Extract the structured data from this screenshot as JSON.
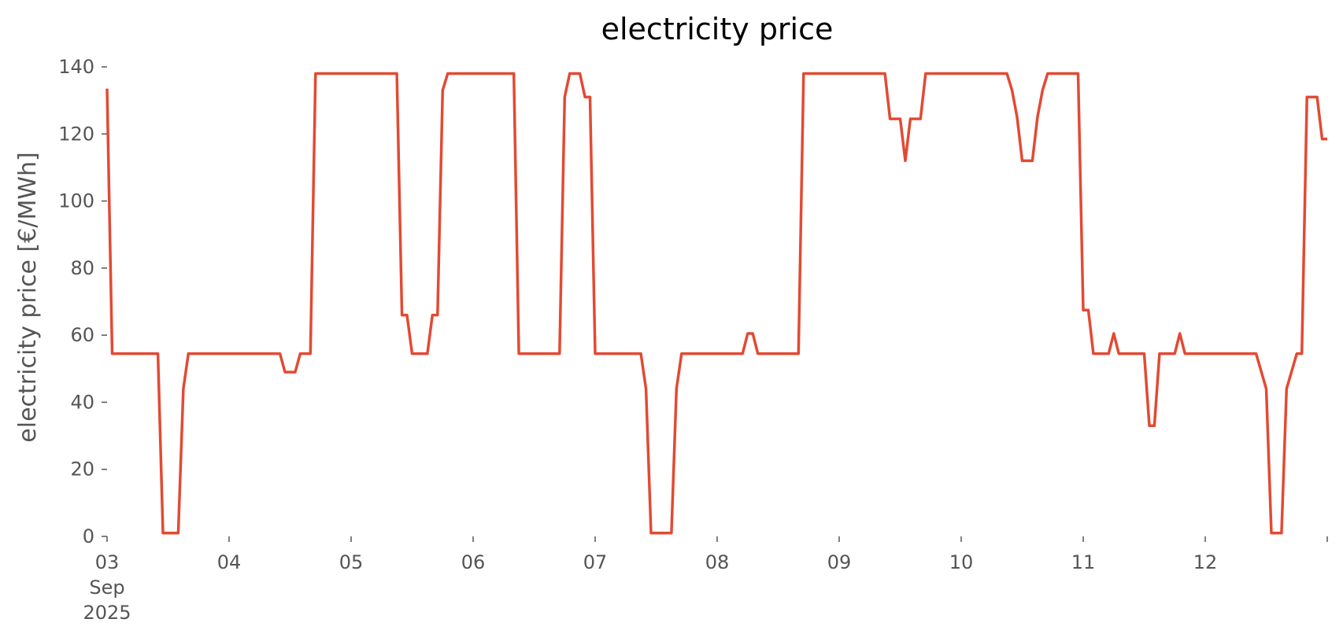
{
  "chart_data": {
    "type": "line",
    "title": "electricity price",
    "xlabel": "",
    "ylabel": "electricity price [€/MWh]",
    "grid": false,
    "legend": "none",
    "color": "#E24A33",
    "ylim": [
      0,
      140
    ],
    "xlim": [
      "2025-09-03 00:00",
      "2025-09-12 23:00"
    ],
    "yticks": [
      0,
      20,
      40,
      60,
      80,
      100,
      120,
      140
    ],
    "xticks": [
      {
        "date": "2025-09-03",
        "lines": [
          "03",
          "Sep",
          "2025"
        ]
      },
      {
        "date": "2025-09-04",
        "lines": [
          "04"
        ]
      },
      {
        "date": "2025-09-05",
        "lines": [
          "05"
        ]
      },
      {
        "date": "2025-09-06",
        "lines": [
          "06"
        ]
      },
      {
        "date": "2025-09-07",
        "lines": [
          "07"
        ]
      },
      {
        "date": "2025-09-08",
        "lines": [
          "08"
        ]
      },
      {
        "date": "2025-09-09",
        "lines": [
          "09"
        ]
      },
      {
        "date": "2025-09-10",
        "lines": [
          "10"
        ]
      },
      {
        "date": "2025-09-11",
        "lines": [
          "11"
        ]
      },
      {
        "date": "2025-09-12",
        "lines": [
          "12"
        ]
      },
      {
        "date": "2025-09-13",
        "lines": [
          ""
        ]
      }
    ],
    "series": [
      {
        "points": [
          [
            "2025-09-03 00:00",
            133.5
          ],
          [
            "2025-09-03 01:00",
            54.5
          ],
          [
            "2025-09-03 10:00",
            54.5
          ],
          [
            "2025-09-03 11:00",
            1
          ],
          [
            "2025-09-03 14:00",
            1
          ],
          [
            "2025-09-03 15:00",
            44
          ],
          [
            "2025-09-03 16:00",
            54.5
          ],
          [
            "2025-09-04 10:00",
            54.5
          ],
          [
            "2025-09-04 11:00",
            49
          ],
          [
            "2025-09-04 13:00",
            49
          ],
          [
            "2025-09-04 14:00",
            54.5
          ],
          [
            "2025-09-04 16:00",
            54.5
          ],
          [
            "2025-09-04 17:00",
            138
          ],
          [
            "2025-09-05 09:00",
            138
          ],
          [
            "2025-09-05 10:00",
            66
          ],
          [
            "2025-09-05 11:00",
            66
          ],
          [
            "2025-09-05 12:00",
            54.5
          ],
          [
            "2025-09-05 15:00",
            54.5
          ],
          [
            "2025-09-05 16:00",
            66
          ],
          [
            "2025-09-05 17:00",
            66
          ],
          [
            "2025-09-05 18:00",
            133
          ],
          [
            "2025-09-05 19:00",
            138
          ],
          [
            "2025-09-06 08:00",
            138
          ],
          [
            "2025-09-06 09:00",
            54.5
          ],
          [
            "2025-09-06 17:00",
            54.5
          ],
          [
            "2025-09-06 18:00",
            131
          ],
          [
            "2025-09-06 19:00",
            138
          ],
          [
            "2025-09-06 21:00",
            138
          ],
          [
            "2025-09-06 22:00",
            131
          ],
          [
            "2025-09-06 23:00",
            131
          ],
          [
            "2025-09-07 00:00",
            54.5
          ],
          [
            "2025-09-07 09:00",
            54.5
          ],
          [
            "2025-09-07 10:00",
            44
          ],
          [
            "2025-09-07 11:00",
            1
          ],
          [
            "2025-09-07 15:00",
            1
          ],
          [
            "2025-09-07 16:00",
            44
          ],
          [
            "2025-09-07 17:00",
            54.5
          ],
          [
            "2025-09-08 05:00",
            54.5
          ],
          [
            "2025-09-08 06:00",
            60.5
          ],
          [
            "2025-09-08 07:00",
            60.5
          ],
          [
            "2025-09-08 08:00",
            54.5
          ],
          [
            "2025-09-08 16:00",
            54.5
          ],
          [
            "2025-09-08 17:00",
            138
          ],
          [
            "2025-09-09 09:00",
            138
          ],
          [
            "2025-09-09 10:00",
            124.5
          ],
          [
            "2025-09-09 12:00",
            124.5
          ],
          [
            "2025-09-09 13:00",
            112
          ],
          [
            "2025-09-09 14:00",
            124.5
          ],
          [
            "2025-09-09 16:00",
            124.5
          ],
          [
            "2025-09-09 17:00",
            138
          ],
          [
            "2025-09-10 09:00",
            138
          ],
          [
            "2025-09-10 10:00",
            133
          ],
          [
            "2025-09-10 11:00",
            125
          ],
          [
            "2025-09-10 12:00",
            112
          ],
          [
            "2025-09-10 14:00",
            112
          ],
          [
            "2025-09-10 15:00",
            125
          ],
          [
            "2025-09-10 16:00",
            133
          ],
          [
            "2025-09-10 17:00",
            138
          ],
          [
            "2025-09-10 23:00",
            138
          ],
          [
            "2025-09-11 00:00",
            67.5
          ],
          [
            "2025-09-11 01:00",
            67.5
          ],
          [
            "2025-09-11 02:00",
            54.5
          ],
          [
            "2025-09-11 05:00",
            54.5
          ],
          [
            "2025-09-11 06:00",
            60.5
          ],
          [
            "2025-09-11 07:00",
            54.5
          ],
          [
            "2025-09-11 12:00",
            54.5
          ],
          [
            "2025-09-11 13:00",
            33
          ],
          [
            "2025-09-11 14:00",
            33
          ],
          [
            "2025-09-11 15:00",
            54.5
          ],
          [
            "2025-09-11 18:00",
            54.5
          ],
          [
            "2025-09-11 19:00",
            60.5
          ],
          [
            "2025-09-11 20:00",
            54.5
          ],
          [
            "2025-09-12 10:00",
            54.5
          ],
          [
            "2025-09-12 12:00",
            44
          ],
          [
            "2025-09-12 13:00",
            1
          ],
          [
            "2025-09-12 15:00",
            1
          ],
          [
            "2025-09-12 16:00",
            44
          ],
          [
            "2025-09-12 18:00",
            54.5
          ],
          [
            "2025-09-12 19:00",
            54.5
          ],
          [
            "2025-09-12 20:00",
            131
          ],
          [
            "2025-09-12 22:00",
            131
          ],
          [
            "2025-09-12 23:00",
            118.5
          ],
          [
            "2025-09-13 00:00",
            118.5
          ]
        ]
      }
    ]
  }
}
